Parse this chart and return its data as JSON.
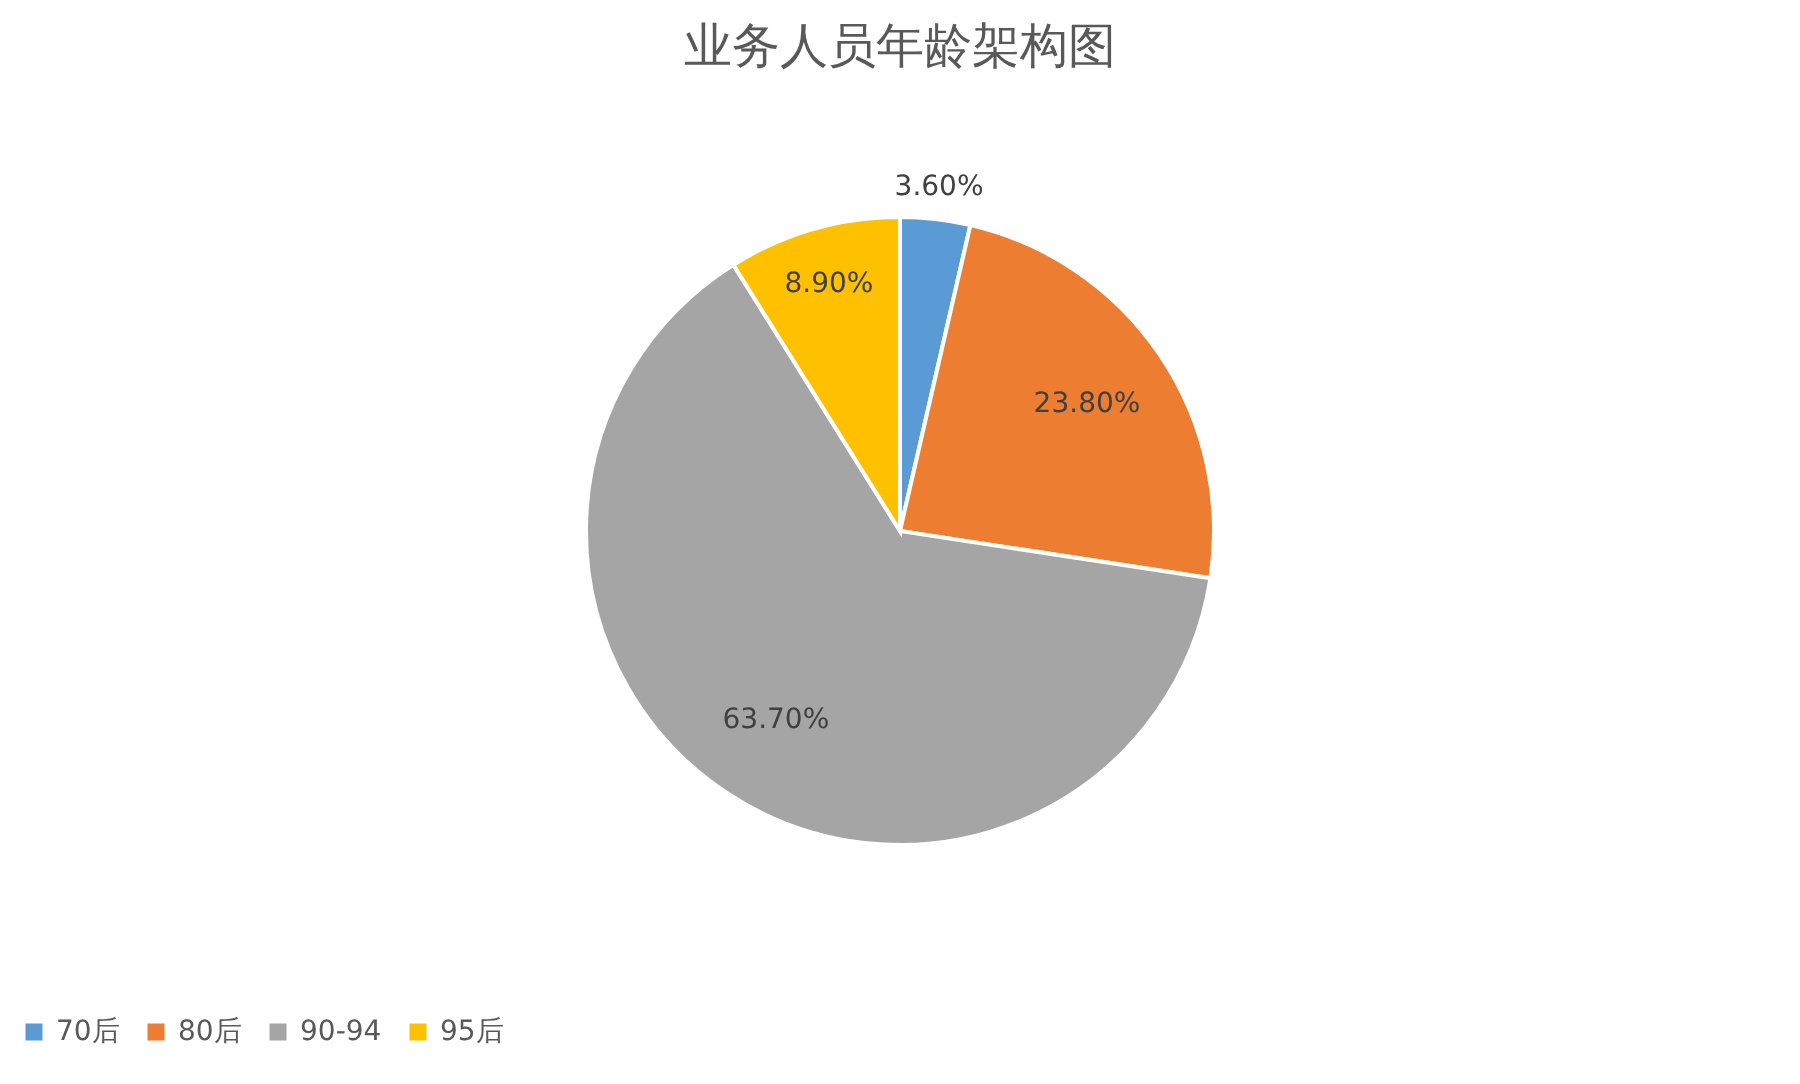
{
  "chart_data": {
    "type": "pie",
    "title": "业务人员年龄架构图",
    "categories": [
      "70后",
      "80后",
      "90-94",
      "95后"
    ],
    "values": [
      3.6,
      23.8,
      63.7,
      8.9
    ],
    "colors": [
      "#5b9bd5",
      "#ed7d31",
      "#a5a5a5",
      "#ffc000"
    ],
    "value_labels": [
      "3.60%",
      "23.80%",
      "63.70%",
      "8.90%"
    ],
    "legend": "bottom"
  }
}
